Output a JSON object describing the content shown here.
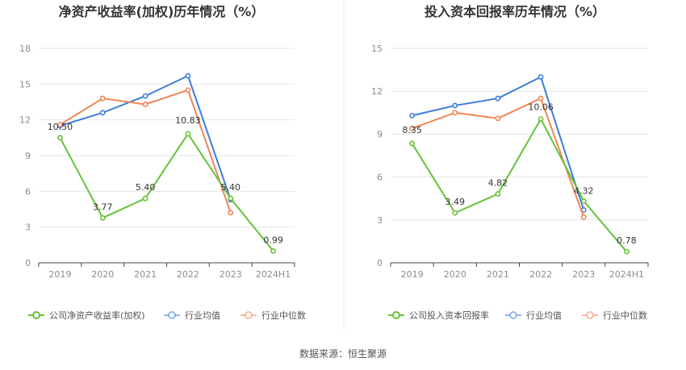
{
  "chart_data": [
    {
      "type": "line",
      "title": "净资产收益率(加权)历年情况（%）",
      "categories": [
        "2019",
        "2020",
        "2021",
        "2022",
        "2023",
        "2024H1"
      ],
      "y_ticks": [
        "0",
        "3",
        "6",
        "9",
        "12",
        "15",
        "18"
      ],
      "ylim": [
        0,
        18
      ],
      "grid": true,
      "legend_position": "bottom-left",
      "series": [
        {
          "name": "公司净资产收益率(加权)",
          "color": "#67c23a",
          "values": [
            10.5,
            3.77,
            5.4,
            10.83,
            5.4,
            0.99
          ],
          "labels": [
            "10.50",
            "3.77",
            "5.40",
            "10.83",
            "5.40",
            "0.99"
          ]
        },
        {
          "name": "行业均值",
          "color": "#3d7ddb",
          "values": [
            11.5,
            12.6,
            14.0,
            15.7,
            5.3,
            null
          ]
        },
        {
          "name": "行业中位数",
          "color": "#ef8655",
          "values": [
            11.6,
            13.8,
            13.3,
            14.5,
            4.2,
            null
          ]
        }
      ]
    },
    {
      "type": "line",
      "title": "投入资本回报率历年情况（%）",
      "categories": [
        "2019",
        "2020",
        "2021",
        "2022",
        "2023",
        "2024H1"
      ],
      "y_ticks": [
        "0",
        "3",
        "6",
        "9",
        "12",
        "15"
      ],
      "ylim": [
        0,
        15
      ],
      "grid": true,
      "legend_position": "bottom-left",
      "series": [
        {
          "name": "公司投入资本回报率",
          "color": "#67c23a",
          "values": [
            8.35,
            3.49,
            4.82,
            10.06,
            4.32,
            0.78
          ],
          "labels": [
            "8.35",
            "3.49",
            "4.82",
            "10.06",
            "4.32",
            "0.78"
          ]
        },
        {
          "name": "行业均值",
          "color": "#3d7ddb",
          "values": [
            10.3,
            11.0,
            11.5,
            13.0,
            3.7,
            null
          ]
        },
        {
          "name": "行业中位数",
          "color": "#ef8655",
          "values": [
            9.4,
            10.5,
            10.1,
            11.5,
            3.2,
            null
          ]
        }
      ]
    }
  ],
  "source_text": "数据来源：恒生聚源"
}
